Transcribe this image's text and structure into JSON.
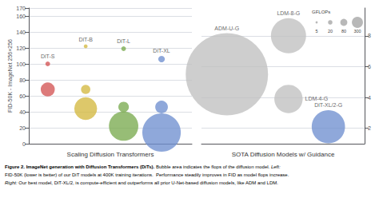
{
  "chart_data": [
    {
      "type": "scatter",
      "title": "Scaling Diffusion Transformers",
      "ylabel": "FID-50K - ImageNet 256×256",
      "xlim": [
        0.5,
        4.8
      ],
      "ylim": [
        0,
        170
      ],
      "yticks": [
        0,
        20,
        40,
        60,
        80,
        100,
        120,
        140,
        160
      ],
      "tick_labels": "y",
      "grid": true,
      "series": [
        {
          "name": "DiT-S",
          "color": "#d45555",
          "x": [
            1.0,
            1.0
          ],
          "values": [
            100,
            68
          ],
          "sizes": [
            18,
            160
          ]
        },
        {
          "name": "DiT-B",
          "color": "#d4b840",
          "x": [
            2.0,
            2.0,
            2.0
          ],
          "values": [
            122,
            68,
            44
          ],
          "sizes": [
            12,
            70,
            420
          ]
        },
        {
          "name": "DiT-L",
          "color": "#7aab50",
          "x": [
            3.0,
            3.0,
            3.0
          ],
          "values": [
            119,
            46,
            22
          ],
          "sizes": [
            18,
            90,
            700
          ]
        },
        {
          "name": "DiT-XL",
          "color": "#7090d0",
          "x": [
            4.0,
            4.0,
            4.0
          ],
          "values": [
            106,
            46,
            14
          ],
          "sizes": [
            35,
            130,
            1200
          ]
        }
      ]
    },
    {
      "type": "scatter",
      "title": "SOTA Diffusion Models w/ Guidance",
      "xlim": [
        0.3,
        4.8
      ],
      "ylim": [
        1.0,
        9.8
      ],
      "yticks": [
        2,
        4,
        6,
        8
      ],
      "tick_labels": "y",
      "grid": true,
      "series": [
        {
          "name": "ADM-U-G",
          "color": "#c0c0c0",
          "x": [
            1.0
          ],
          "values": [
            5.5
          ],
          "sizes": [
            5500
          ]
        },
        {
          "name": "LDM-8-G",
          "color": "#c0c0c0",
          "x": [
            2.7
          ],
          "values": [
            8.0
          ],
          "sizes": [
            1000
          ]
        },
        {
          "name": "LDM-4-G",
          "color": "#c0c0c0",
          "x": [
            2.7
          ],
          "values": [
            3.9
          ],
          "sizes": [
            650
          ]
        },
        {
          "name": "DiT-XL/2-G",
          "color": "#7090d0",
          "x": [
            3.8
          ],
          "values": [
            2.1
          ],
          "sizes": [
            900
          ]
        }
      ],
      "size_legend": {
        "title": "GFLOPs",
        "values": [
          5,
          20,
          80,
          300
        ],
        "sizes": [
          4,
          16,
          40,
          100
        ]
      }
    }
  ],
  "caption": [
    [
      {
        "text": "Figure 2.",
        "style": "bold"
      },
      {
        "text": "ImageNet generation with Diffusion Transformers (DiTs).",
        "style": "bold"
      },
      {
        "text": "Bubble area indicates the flops of the diffusion model.",
        "style": "normal"
      },
      {
        "text": "Left:",
        "style": "italic"
      }
    ],
    [
      {
        "text": "FID-50K (lower is better) of our DiT models at 400K training iterations.  Performance steadily improves in FID as model flops increase.",
        "style": "normal"
      }
    ],
    [
      {
        "text": "Right:",
        "style": "italic"
      },
      {
        "text": "Our best model, DiT-XL/2, is compute-efficient and outperforms all prior U-Net-based diffusion models, like ADM and LDM.",
        "style": "normal"
      }
    ]
  ]
}
